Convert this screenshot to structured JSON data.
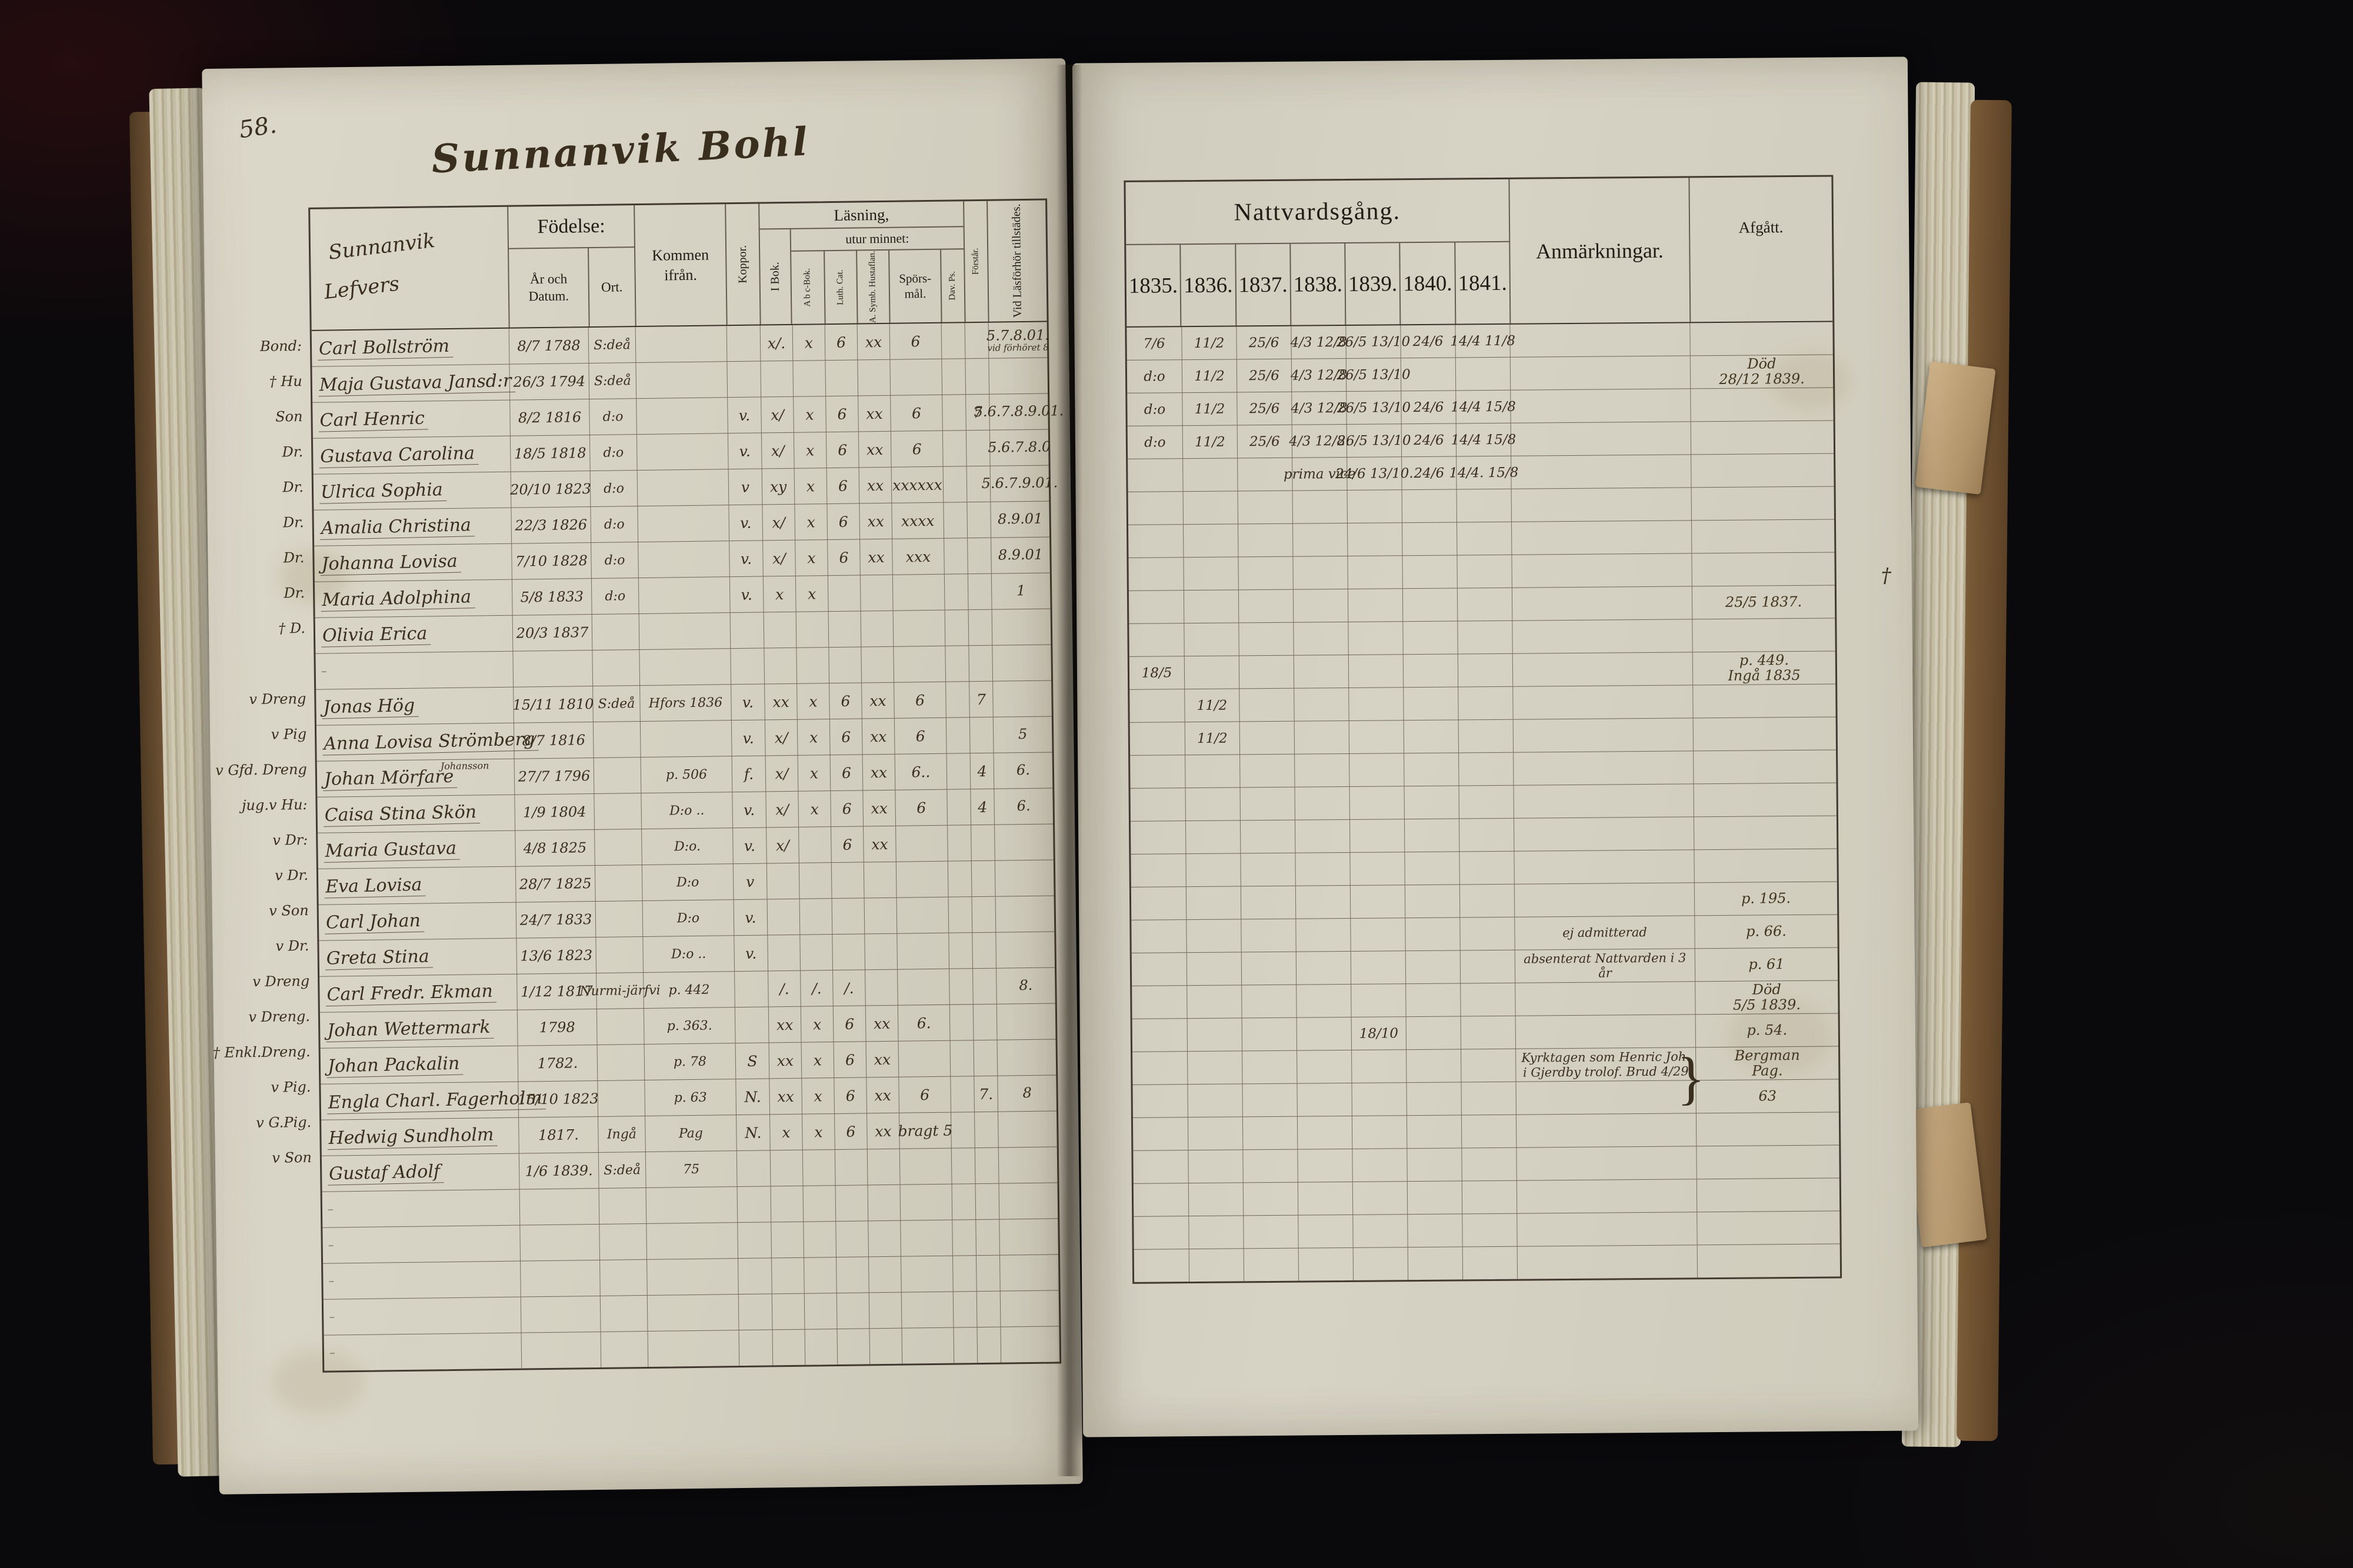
{
  "colors": {
    "background": "#0a090c",
    "paper_left": "#d8d4c6",
    "paper_right": "#d2cec0",
    "ink_printed": "#211c14",
    "ink_hand": "#3a2e1f",
    "leather": "#6b4f30",
    "ribbon": "#c2a578"
  },
  "left_page": {
    "page_number": "58.",
    "title": "Sunnanvik Bohl",
    "table": {
      "name_header_1": "Sunnanvik",
      "name_header_2": "Lefvers",
      "headers": {
        "fodelse": "Födelse:",
        "ar_datum": "År och Datum.",
        "ort": "Ort.",
        "kommen": "Kommen ifrån.",
        "koppor": "Koppor.",
        "lasning": "Läsning,",
        "i_bok": "I Bok.",
        "utur_minnet": "utur minnet:",
        "abc_bok": "A b c-Bok.",
        "luth_cat": "Luth. Cat.",
        "symb": "A. Symb. Hustaflan.",
        "spors": "Spörs-mål.",
        "dav_ps": "Dav. Ps.",
        "forstar": "Förstår.",
        "tillstades": "Vid Läsförhör tillstädes."
      },
      "rows": [
        {
          "role": "Bond:",
          "name": "Carl Bollström",
          "datum": "8/7 1788",
          "ort": "S:deå",
          "ibok": "x/.",
          "abc": "x",
          "luth": "6",
          "hust": "xx",
          "spors": "6",
          "tillst": "5.7.8.01.",
          "tillst2": "vid förhöret 8"
        },
        {
          "role": "† Hu",
          "name": "Maja Gustava Jansd:r",
          "datum": "26/3 1794",
          "ort": "S:deå"
        },
        {
          "role": "Son",
          "name": "Carl Henric",
          "datum": "8/2 1816",
          "ort": "d:o",
          "koppor": "v.",
          "ibok": "x/",
          "abc": "x",
          "luth": "6",
          "hust": "xx",
          "spors": "6",
          "forstar": "7",
          "tillst": "5.6.7.8.9.01."
        },
        {
          "role": "Dr.",
          "name": "Gustava Carolina",
          "datum": "18/5 1818",
          "ort": "d:o",
          "koppor": "v.",
          "ibok": "x/",
          "abc": "x",
          "luth": "6",
          "hust": "xx",
          "spors": "6",
          "tillst": "5.6.7.8.0"
        },
        {
          "role": "Dr.",
          "name": "Ulrica Sophia",
          "datum": "20/10 1823",
          "ort": "d:o",
          "koppor": "v",
          "ibok": "xy",
          "abc": "x",
          "luth": "6",
          "hust": "xx",
          "spors": "xxxxxx",
          "tillst": "5.6.7.9.01."
        },
        {
          "role": "Dr.",
          "name": "Amalia Christina",
          "datum": "22/3 1826",
          "ort": "d:o",
          "koppor": "v.",
          "ibok": "x/",
          "abc": "x",
          "luth": "6",
          "hust": "xx",
          "spors": "xxxx",
          "tillst": "8.9.01"
        },
        {
          "role": "Dr.",
          "name": "Johanna Lovisa",
          "datum": "7/10 1828",
          "ort": "d:o",
          "koppor": "v.",
          "ibok": "x/",
          "abc": "x",
          "luth": "6",
          "hust": "xx",
          "spors": "xxx",
          "tillst": "8.9.01"
        },
        {
          "role": "Dr.",
          "name": "Maria Adolphina",
          "datum": "5/8 1833",
          "ort": "d:o",
          "koppor": "v.",
          "ibok": "x",
          "abc": "x",
          "tillst": "1"
        },
        {
          "role": "† D.",
          "name": "Olivia Erica",
          "datum": "20/3 1837"
        },
        {},
        {
          "role": "v Dreng",
          "name": "Jonas Hög",
          "datum": "15/11 1810",
          "ort": "S:deå",
          "kommen": "Hfors 1836",
          "koppor": "v.",
          "ibok": "xx",
          "abc": "x",
          "luth": "6",
          "hust": "xx",
          "spors": "6",
          "forstar": "7"
        },
        {
          "role": "v Pig",
          "name": "Anna Lovisa Strömberg",
          "datum": "8/7 1816",
          "koppor": "v.",
          "ibok": "x/",
          "abc": "x",
          "luth": "6",
          "hust": "xx",
          "spors": "6",
          "tillst": "5"
        },
        {
          "role": "v Gfd. Dreng",
          "name": "Johan Mörfare",
          "name_above": "Johansson",
          "datum": "27/7 1796",
          "kommen": "p. 506",
          "koppor": "f.",
          "ibok": "x/",
          "abc": "x",
          "luth": "6",
          "hust": "xx",
          "spors": "6..",
          "forstar": "4",
          "tillst": "6."
        },
        {
          "role": "jug.v Hu:",
          "name": "Caisa Stina Skön",
          "datum": "1/9 1804",
          "kommen": "D:o ..",
          "koppor": "v.",
          "ibok": "x/",
          "abc": "x",
          "luth": "6",
          "hust": "xx",
          "spors": "6",
          "forstar": "4",
          "tillst": "6."
        },
        {
          "role": "v Dr:",
          "name": "Maria Gustava",
          "datum": "4/8 1825",
          "kommen": "D:o.",
          "koppor": "v.",
          "ibok": "x/",
          "luth": "6",
          "hust": "xx"
        },
        {
          "role": "v Dr.",
          "name": "Eva Lovisa",
          "datum": "28/7 1825",
          "kommen": "D:o",
          "koppor": "v"
        },
        {
          "role": "v Son",
          "name": "Carl Johan",
          "datum": "24/7 1833",
          "kommen": "D:o",
          "koppor": "v."
        },
        {
          "role": "v Dr.",
          "name": "Greta Stina",
          "datum": "13/6 1823",
          "kommen": "D:o ..",
          "koppor": "v."
        },
        {
          "role": "v Dreng",
          "name": "Carl Fredr. Ekman",
          "datum": "1/12 1817",
          "ort": "Nurmi-järfvi",
          "kommen": "p. 442",
          "ibok": "/.",
          "abc": "/.",
          "luth": "/.",
          "tillst": "8."
        },
        {
          "role": "v Dreng.",
          "name": "Johan Wettermark",
          "datum": "1798",
          "kommen": "p. 363.",
          "ibok": "xx",
          "abc": "x",
          "luth": "6",
          "hust": "xx",
          "spors": "6."
        },
        {
          "role": "† Enkl.Dreng.",
          "name": "Johan Packalin",
          "datum": "1782.",
          "kommen": "p. 78",
          "koppor": "S",
          "ibok": "xx",
          "abc": "x",
          "luth": "6",
          "hust": "xx"
        },
        {
          "role": "v Pig.",
          "name": "Engla Charl. Fagerholm",
          "datum": "15/10 1823",
          "kommen": "p. 63",
          "koppor": "N.",
          "ibok": "xx",
          "abc": "x",
          "luth": "6",
          "hust": "xx",
          "spors": "6",
          "forstar": "7.",
          "tillst": "8"
        },
        {
          "role": "v G.Pig.",
          "name": "Hedwig Sundholm",
          "datum": "1817.",
          "ort": "Ingå",
          "kommen": "Pag",
          "koppor": "N.",
          "ibok": "x",
          "abc": "x",
          "luth": "6",
          "hust": "xx",
          "spors": "bragt 5"
        },
        {
          "role": "v Son",
          "name": "Gustaf Adolf",
          "datum": "1/6 1839.",
          "ort": "S:deå",
          "kommen": "75"
        },
        {},
        {},
        {},
        {},
        {}
      ]
    }
  },
  "right_page": {
    "margin_dagger": "†",
    "table": {
      "title": "Nattvardsgång.",
      "years": [
        "1835.",
        "1836.",
        "1837.",
        "1838.",
        "1839.",
        "1840.",
        "1841."
      ],
      "anmarkningar": "Anmärkningar.",
      "afgatt": "Afgått.",
      "rows": [
        {
          "c0": "7/6",
          "c1": "11/2",
          "c2": "25/6",
          "c3": "4/3 12/8",
          "c4": "26/5 13/10",
          "c5": "24/6",
          "c6": "14/4 11/8"
        },
        {
          "c0": "d:o",
          "c1": "11/2",
          "c2": "25/6",
          "c3": "4/3 12/8",
          "c4": "26/5 13/10",
          "af1": "Död",
          "af2": "28/12 1839."
        },
        {
          "c0": "d:o",
          "c1": "11/2",
          "c2": "25/6",
          "c3": "4/3 12/8",
          "c4": "26/5 13/10",
          "c5": "24/6",
          "c6": "14/4 15/8"
        },
        {
          "c0": "d:o",
          "c1": "11/2",
          "c2": "25/6",
          "c3": "4/3 12/8.",
          "c4": "26/5 13/10",
          "c5": "24/6",
          "c6": "14/4 15/8"
        },
        {
          "c3": "prima vice",
          "c4": "24/6 13/10.",
          "c5": "24/6",
          "c6": "14/4. 15/8"
        },
        {},
        {},
        {},
        {
          "af1": "25/5 1837."
        },
        {},
        {
          "c0": "18/5",
          "af1": "p. 449.",
          "af2": "Ingå 1835"
        },
        {
          "c1": "11/2"
        },
        {
          "c1": "11/2"
        },
        {},
        {},
        {},
        {},
        {
          "af1": "p. 195."
        },
        {
          "anm": "ej admitterad",
          "af1": "p. 66."
        },
        {
          "anm": "absenterat Nattvarden i 3 år",
          "af1": "p. 61"
        },
        {
          "af1": "Död",
          "af2": "5/5 1839."
        },
        {
          "c4": "18/10",
          "af1": "p. 54."
        },
        {
          "anm": "Kyrktagen som Henric Joh.",
          "anm2": "i Gjerdby trolof. Brud 4/29",
          "brace": "}",
          "af1": "Bergman",
          "af2": "Pag."
        },
        {
          "af1": "63"
        },
        {},
        {},
        {},
        {},
        {}
      ]
    }
  }
}
